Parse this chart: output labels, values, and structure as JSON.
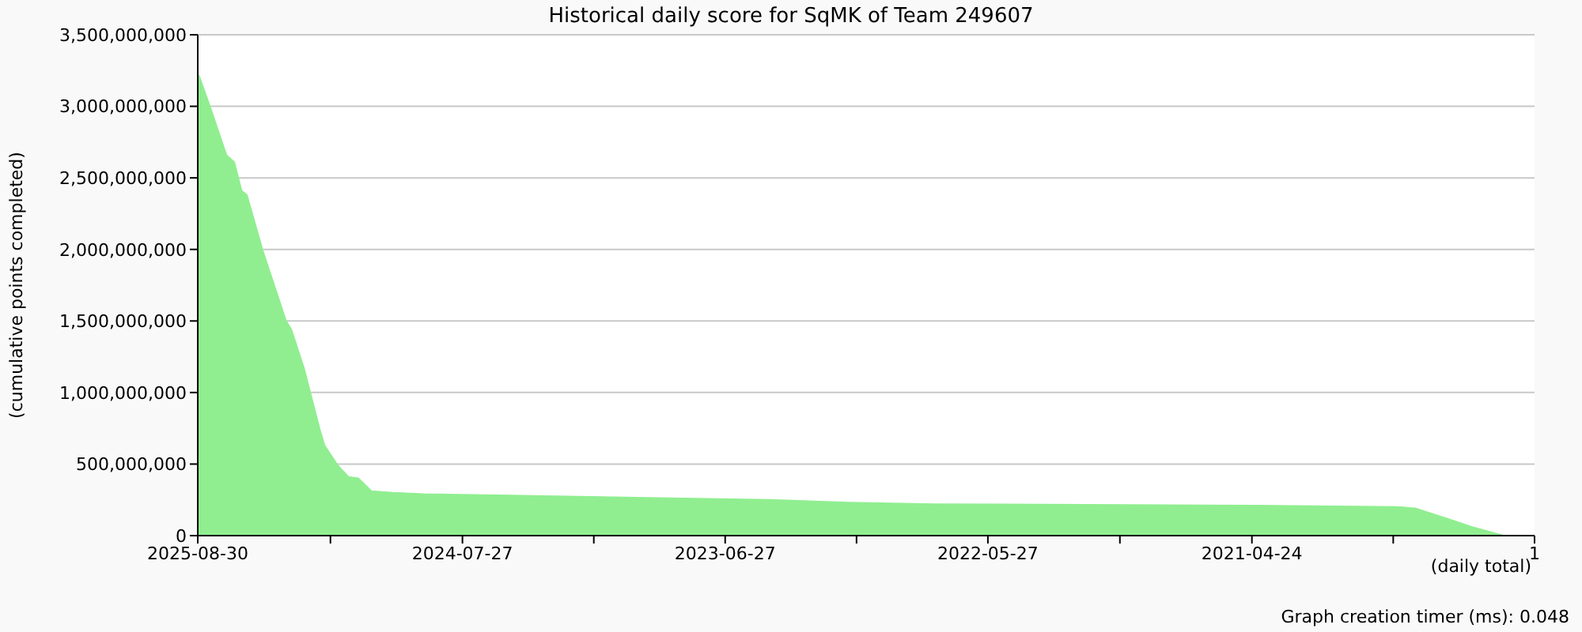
{
  "chart_data": {
    "type": "area",
    "title": "Historical daily score for SqMK of Team 249607",
    "xlabel": "(daily total)",
    "ylabel": "(cumulative points completed)",
    "annotations": [
      "Graph creation timer (ms): 0.048"
    ],
    "x": [
      "2025-08-30",
      "2025-08-28",
      "2025-08-11",
      "2025-07-18",
      "2025-07-06",
      "2025-06-25",
      "2025-06-17",
      "2025-05-24",
      "2025-04-19",
      "2025-04-11",
      "2025-03-23",
      "2025-02-27",
      "2025-02-20",
      "2025-01-31",
      "2025-01-15",
      "2024-12-31",
      "2024-12-11",
      "2024-11-10",
      "2024-09-24",
      "2024-05-15",
      "2024-01-15",
      "2023-08-28",
      "2023-04-20",
      "2022-12-22",
      "2022-08-16",
      "2021-04-19",
      "2020-09-17",
      "2020-08-21",
      "2020-07-05",
      "2020-05-27",
      "2020-04-10",
      "2020-02-23"
    ],
    "series": [
      {
        "color": "#90ee90",
        "values": [
          3220000000,
          3210000000,
          2990000000,
          2660000000,
          2610000000,
          2410000000,
          2380000000,
          1990000000,
          1500000000,
          1440000000,
          1170000000,
          740000000,
          630000000,
          490000000,
          410000000,
          400000000,
          310000000,
          300000000,
          290000000,
          280000000,
          270000000,
          260000000,
          250000000,
          230000000,
          220000000,
          210000000,
          200000000,
          190000000,
          120000000,
          60000000,
          0,
          0
        ]
      }
    ],
    "xlim": [
      "2025-08-30",
      "2020-02-23"
    ],
    "xticks": [
      "2025-08-30",
      {
        "value": "2025-02-11",
        "label": null
      },
      "2024-07-27",
      {
        "value": "2024-01-11",
        "label": null
      },
      "2023-06-27",
      {
        "value": "2022-12-11",
        "label": null
      },
      "2022-05-27",
      {
        "value": "2021-11-09",
        "label": null
      },
      "2021-04-24",
      {
        "value": "2020-09-23",
        "label": null
      },
      {
        "value": "2020-02-23",
        "label": "1"
      }
    ],
    "ylim": [
      0,
      3500000000
    ],
    "yticks": [
      0,
      {
        "value": 500000000,
        "label": "500,000,000"
      },
      {
        "value": 1000000000,
        "label": "1,000,000,000"
      },
      {
        "value": 1500000000,
        "label": "1,500,000,000"
      },
      {
        "value": 2000000000,
        "label": "2,000,000,000"
      },
      {
        "value": 2500000000,
        "label": "2,500,000,000"
      },
      {
        "value": 3000000000,
        "label": "3,000,000,000"
      },
      {
        "value": 3500000000,
        "label": "3,500,000,000"
      }
    ],
    "grid": "y",
    "legend": false
  }
}
